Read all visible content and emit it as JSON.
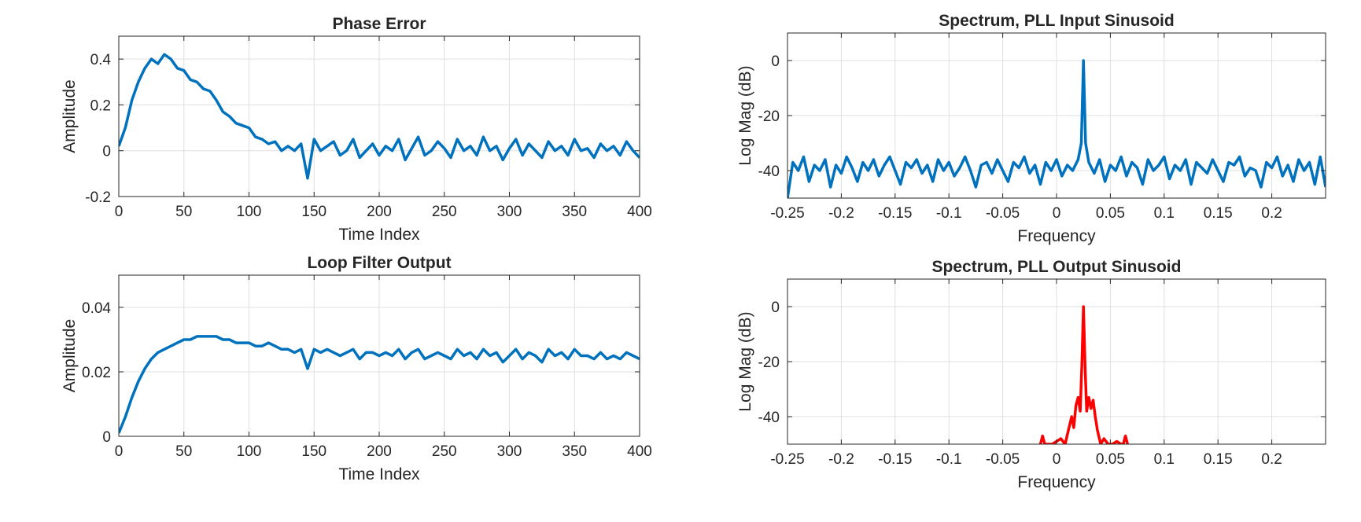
{
  "chart_data": [
    {
      "type": "line",
      "title": "Phase Error",
      "xlabel": "Time Index",
      "ylabel": "Amplitude",
      "xlim": [
        0,
        400
      ],
      "ylim": [
        -0.2,
        0.5
      ],
      "xticks": [
        0,
        50,
        100,
        150,
        200,
        250,
        300,
        350,
        400
      ],
      "xtick_labels": [
        "0",
        "50",
        "100",
        "150",
        "200",
        "250",
        "300",
        "350",
        "400"
      ],
      "yticks": [
        -0.2,
        0,
        0.2,
        0.4
      ],
      "ytick_labels": [
        "-0.2",
        "0",
        "0.2",
        "0.4"
      ],
      "grid": true,
      "line_color": "#0072BD",
      "series": [
        {
          "x": [
            0,
            5,
            10,
            15,
            20,
            25,
            30,
            35,
            40,
            45,
            50,
            55,
            60,
            65,
            70,
            75,
            80,
            85,
            90,
            95,
            100,
            105,
            110,
            115,
            120,
            125,
            130,
            135,
            140,
            145,
            150,
            155,
            160,
            165,
            170,
            175,
            180,
            185,
            190,
            195,
            200,
            205,
            210,
            215,
            220,
            225,
            230,
            235,
            240,
            245,
            250,
            255,
            260,
            265,
            270,
            275,
            280,
            285,
            290,
            295,
            300,
            305,
            310,
            315,
            320,
            325,
            330,
            335,
            340,
            345,
            350,
            355,
            360,
            365,
            370,
            375,
            380,
            385,
            390,
            395,
            400
          ],
          "y": [
            0.02,
            0.1,
            0.22,
            0.3,
            0.36,
            0.4,
            0.38,
            0.42,
            0.4,
            0.36,
            0.35,
            0.31,
            0.3,
            0.27,
            0.26,
            0.22,
            0.17,
            0.15,
            0.12,
            0.11,
            0.1,
            0.06,
            0.05,
            0.03,
            0.04,
            0.0,
            0.02,
            0.0,
            0.03,
            -0.12,
            0.05,
            0.0,
            0.02,
            0.04,
            -0.02,
            0.0,
            0.05,
            -0.03,
            0.0,
            0.03,
            -0.02,
            0.02,
            0.0,
            0.05,
            -0.04,
            0.01,
            0.06,
            -0.02,
            0.0,
            0.04,
            0.01,
            -0.03,
            0.05,
            0.0,
            0.02,
            -0.02,
            0.06,
            0.0,
            0.02,
            -0.04,
            0.01,
            0.05,
            -0.02,
            0.03,
            0.0,
            -0.03,
            0.04,
            0.0,
            0.02,
            -0.02,
            0.05,
            0.0,
            0.01,
            -0.03,
            0.03,
            0.0,
            0.02,
            -0.02,
            0.04,
            0.0,
            -0.03
          ]
        }
      ]
    },
    {
      "type": "line",
      "title": "Loop Filter Output",
      "xlabel": "Time Index",
      "ylabel": "Amplitude",
      "xlim": [
        0,
        400
      ],
      "ylim": [
        0,
        0.05
      ],
      "xticks": [
        0,
        50,
        100,
        150,
        200,
        250,
        300,
        350,
        400
      ],
      "xtick_labels": [
        "0",
        "50",
        "100",
        "150",
        "200",
        "250",
        "300",
        "350",
        "400"
      ],
      "yticks": [
        0,
        0.02,
        0.04
      ],
      "ytick_labels": [
        "0",
        "0.02",
        "0.04"
      ],
      "grid": true,
      "line_color": "#0072BD",
      "series": [
        {
          "x": [
            0,
            5,
            10,
            15,
            20,
            25,
            30,
            35,
            40,
            45,
            50,
            55,
            60,
            65,
            70,
            75,
            80,
            85,
            90,
            95,
            100,
            105,
            110,
            115,
            120,
            125,
            130,
            135,
            140,
            145,
            150,
            155,
            160,
            165,
            170,
            175,
            180,
            185,
            190,
            195,
            200,
            205,
            210,
            215,
            220,
            225,
            230,
            235,
            240,
            245,
            250,
            255,
            260,
            265,
            270,
            275,
            280,
            285,
            290,
            295,
            300,
            305,
            310,
            315,
            320,
            325,
            330,
            335,
            340,
            345,
            350,
            355,
            360,
            365,
            370,
            375,
            380,
            385,
            390,
            395,
            400
          ],
          "y": [
            0.001,
            0.006,
            0.012,
            0.017,
            0.021,
            0.024,
            0.026,
            0.027,
            0.028,
            0.029,
            0.03,
            0.03,
            0.031,
            0.031,
            0.031,
            0.031,
            0.03,
            0.03,
            0.029,
            0.029,
            0.029,
            0.028,
            0.028,
            0.029,
            0.028,
            0.027,
            0.027,
            0.026,
            0.027,
            0.021,
            0.027,
            0.026,
            0.027,
            0.026,
            0.025,
            0.026,
            0.027,
            0.024,
            0.026,
            0.026,
            0.025,
            0.026,
            0.025,
            0.027,
            0.024,
            0.026,
            0.027,
            0.024,
            0.025,
            0.026,
            0.025,
            0.024,
            0.027,
            0.025,
            0.026,
            0.024,
            0.027,
            0.025,
            0.026,
            0.023,
            0.025,
            0.027,
            0.024,
            0.026,
            0.025,
            0.023,
            0.027,
            0.025,
            0.026,
            0.024,
            0.027,
            0.025,
            0.025,
            0.024,
            0.026,
            0.024,
            0.025,
            0.024,
            0.026,
            0.025,
            0.024
          ]
        }
      ]
    },
    {
      "type": "line",
      "title": "Spectrum, PLL Input Sinusoid",
      "xlabel": "Frequency",
      "ylabel": "Log Mag (dB)",
      "xlim": [
        -0.25,
        0.25
      ],
      "ylim": [
        -50,
        10
      ],
      "xticks": [
        -0.25,
        -0.2,
        -0.15,
        -0.1,
        -0.05,
        0,
        0.05,
        0.1,
        0.15,
        0.2
      ],
      "xtick_labels": [
        "-0.25",
        "-0.2",
        "-0.15",
        "-0.1",
        "-0.05",
        "0",
        "0.05",
        "0.1",
        "0.15",
        "0.2"
      ],
      "yticks": [
        -40,
        -20,
        0
      ],
      "ytick_labels": [
        "-40",
        "-20",
        "0"
      ],
      "grid": true,
      "line_color": "#0072BD",
      "series": [
        {
          "x": [
            -0.25,
            -0.245,
            -0.24,
            -0.235,
            -0.23,
            -0.225,
            -0.22,
            -0.215,
            -0.21,
            -0.205,
            -0.2,
            -0.195,
            -0.19,
            -0.185,
            -0.18,
            -0.175,
            -0.17,
            -0.165,
            -0.16,
            -0.155,
            -0.15,
            -0.145,
            -0.14,
            -0.135,
            -0.13,
            -0.125,
            -0.12,
            -0.115,
            -0.11,
            -0.105,
            -0.1,
            -0.095,
            -0.09,
            -0.085,
            -0.08,
            -0.075,
            -0.07,
            -0.065,
            -0.06,
            -0.055,
            -0.05,
            -0.045,
            -0.04,
            -0.035,
            -0.03,
            -0.025,
            -0.02,
            -0.015,
            -0.01,
            -0.005,
            0,
            0.005,
            0.01,
            0.015,
            0.02,
            0.023,
            0.025,
            0.027,
            0.03,
            0.035,
            0.04,
            0.045,
            0.05,
            0.055,
            0.06,
            0.065,
            0.07,
            0.075,
            0.08,
            0.085,
            0.09,
            0.095,
            0.1,
            0.105,
            0.11,
            0.115,
            0.12,
            0.125,
            0.13,
            0.135,
            0.14,
            0.145,
            0.15,
            0.155,
            0.16,
            0.165,
            0.17,
            0.175,
            0.18,
            0.185,
            0.19,
            0.195,
            0.2,
            0.205,
            0.21,
            0.215,
            0.22,
            0.225,
            0.23,
            0.235,
            0.24,
            0.245,
            0.25
          ],
          "y": [
            -50,
            -37,
            -40,
            -35,
            -44,
            -38,
            -40,
            -36,
            -46,
            -38,
            -41,
            -35,
            -39,
            -44,
            -37,
            -40,
            -36,
            -42,
            -38,
            -35,
            -40,
            -45,
            -37,
            -39,
            -36,
            -41,
            -38,
            -44,
            -36,
            -40,
            -37,
            -42,
            -39,
            -35,
            -40,
            -46,
            -38,
            -37,
            -41,
            -36,
            -40,
            -44,
            -37,
            -39,
            -35,
            -41,
            -38,
            -45,
            -37,
            -40,
            -36,
            -42,
            -38,
            -40,
            -36,
            -30,
            0,
            -30,
            -37,
            -41,
            -36,
            -44,
            -38,
            -40,
            -35,
            -42,
            -37,
            -39,
            -45,
            -36,
            -40,
            -38,
            -35,
            -43,
            -38,
            -40,
            -36,
            -45,
            -37,
            -39,
            -41,
            -36,
            -40,
            -44,
            -37,
            -38,
            -35,
            -42,
            -39,
            -40,
            -46,
            -37,
            -39,
            -35,
            -42,
            -38,
            -44,
            -36,
            -40,
            -37,
            -45,
            -35,
            -46
          ]
        }
      ]
    },
    {
      "type": "line",
      "title": "Spectrum, PLL Output Sinusoid",
      "xlabel": "Frequency",
      "ylabel": "Log Mag (dB)",
      "xlim": [
        -0.25,
        0.25
      ],
      "ylim": [
        -50,
        10
      ],
      "xticks": [
        -0.25,
        -0.2,
        -0.15,
        -0.1,
        -0.05,
        0,
        0.05,
        0.1,
        0.15,
        0.2
      ],
      "xtick_labels": [
        "-0.25",
        "-0.2",
        "-0.15",
        "-0.1",
        "-0.05",
        "0",
        "0.05",
        "0.1",
        "0.15",
        "0.2"
      ],
      "yticks": [
        -40,
        -20,
        0
      ],
      "ytick_labels": [
        "-40",
        "-20",
        "0"
      ],
      "grid": true,
      "line_color": "#FF0000",
      "series": [
        {
          "x": [
            -0.015,
            -0.013,
            -0.011,
            -0.008,
            -0.004,
            0,
            0.004,
            0.008,
            0.011,
            0.014,
            0.016,
            0.018,
            0.02,
            0.022,
            0.0235,
            0.025,
            0.0265,
            0.028,
            0.03,
            0.032,
            0.034,
            0.036,
            0.038,
            0.041,
            0.044,
            0.048,
            0.052,
            0.056,
            0.06,
            0.062,
            0.064,
            0.066
          ],
          "y": [
            -50,
            -47,
            -50,
            -50,
            -50,
            -49,
            -48,
            -50,
            -45,
            -40,
            -44,
            -36,
            -33,
            -38,
            -22,
            0,
            -22,
            -38,
            -33,
            -37,
            -34,
            -40,
            -45,
            -50,
            -48,
            -50,
            -50,
            -49,
            -50,
            -50,
            -47,
            -50
          ]
        }
      ]
    }
  ]
}
